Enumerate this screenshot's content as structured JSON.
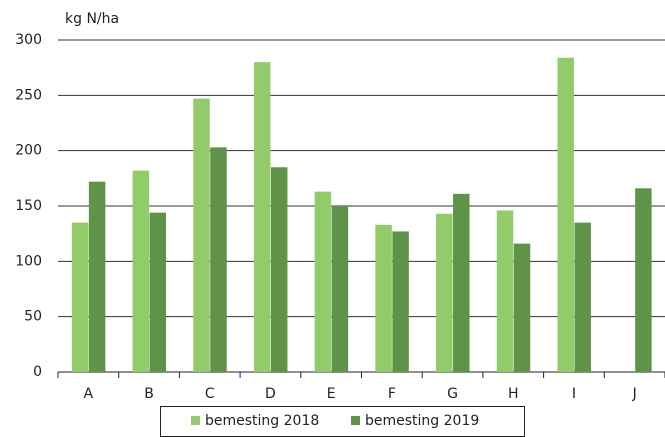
{
  "chart_data": {
    "type": "bar",
    "y_label": "kg N/ha",
    "categories": [
      "A",
      "B",
      "C",
      "D",
      "E",
      "F",
      "G",
      "H",
      "I",
      "J"
    ],
    "series": [
      {
        "name": "bemesting 2018",
        "color": "#92cb6a",
        "values": [
          135,
          182,
          247,
          280,
          163,
          133,
          143,
          146,
          284,
          null
        ]
      },
      {
        "name": "bemesting 2019",
        "color": "#5f9448",
        "values": [
          172,
          144,
          203,
          185,
          150,
          127,
          161,
          116,
          135,
          166
        ]
      }
    ],
    "ylim": [
      0,
      300
    ],
    "yticks": [
      0,
      50,
      100,
      150,
      200,
      250,
      300
    ],
    "grid": true
  }
}
